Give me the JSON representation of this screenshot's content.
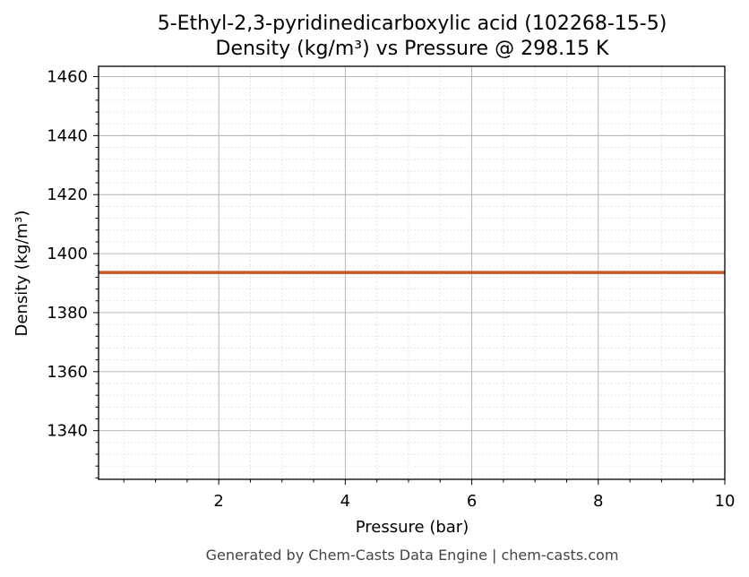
{
  "chart_data": {
    "type": "line",
    "title_line1": "5-Ethyl-2,3-pyridinedicarboxylic acid (102268-15-5)",
    "title_line2": "Density (kg/m³) vs Pressure @ 298.15 K",
    "xlabel": "Pressure (bar)",
    "ylabel": "Density (kg/m³)",
    "xlim": [
      0.1,
      10
    ],
    "ylim": [
      1323.5,
      1463.5
    ],
    "x_ticks": [
      2,
      4,
      6,
      8,
      10
    ],
    "y_ticks": [
      1340,
      1360,
      1380,
      1400,
      1420,
      1440,
      1460
    ],
    "grid": true,
    "series": [
      {
        "color": "#c8562a",
        "x": [
          0.1,
          1,
          2,
          3,
          4,
          5,
          6,
          7,
          8,
          9,
          10
        ],
        "y": [
          1393.6,
          1393.6,
          1393.6,
          1393.6,
          1393.6,
          1393.6,
          1393.6,
          1393.6,
          1393.6,
          1393.6,
          1393.6
        ]
      }
    ]
  },
  "footer": "Generated by Chem-Casts Data Engine | chem-casts.com"
}
